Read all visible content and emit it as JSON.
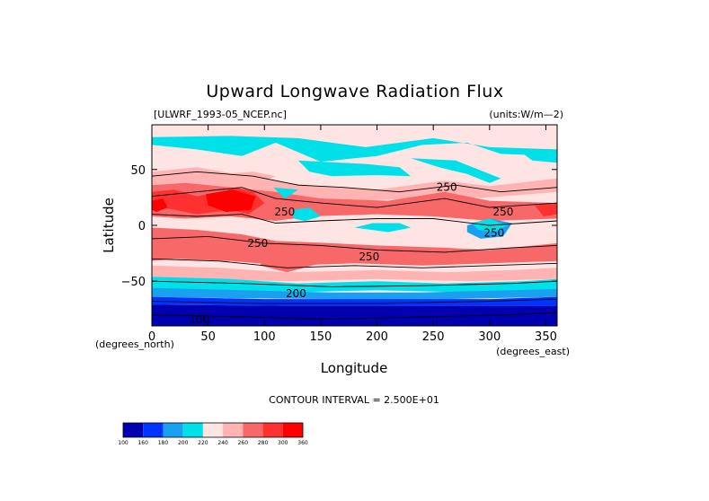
{
  "chart_data": {
    "type": "heatmap",
    "title": "Upward Longwave Radiation Flux",
    "dataset_label": "[ULWRF_1993-05_NCEP.nc]",
    "units_label": "(units:W/m^-2)",
    "units_display": "(units:W/m—2)",
    "xlabel": "Longitude",
    "ylabel": "Latitude",
    "x_unit_note": "(degrees_east)",
    "y_unit_note": "(degrees_north)",
    "xlim": [
      0,
      360
    ],
    "ylim": [
      -90,
      90
    ],
    "x_ticks": [
      0,
      50,
      100,
      150,
      200,
      250,
      300,
      350
    ],
    "y_ticks": [
      50,
      0,
      -50
    ],
    "x_tick_labels": [
      "0",
      "50",
      "100",
      "150",
      "200",
      "250",
      "300",
      "350"
    ],
    "y_tick_labels": [
      "50",
      "0",
      "−50"
    ],
    "contour_interval_text": "CONTOUR INTERVAL = 2.500E+01",
    "contour_labels": [
      {
        "text": "250",
        "lon": 262,
        "lat": 34
      },
      {
        "text": "250",
        "lon": 118,
        "lat": 12
      },
      {
        "text": "250",
        "lon": 312,
        "lat": 12
      },
      {
        "text": "250",
        "lon": 94,
        "lat": -16
      },
      {
        "text": "250",
        "lon": 193,
        "lat": -28
      },
      {
        "text": "250",
        "lon": 304,
        "lat": -7
      },
      {
        "text": "200",
        "lon": 128,
        "lat": -61
      },
      {
        "text": "100",
        "lon": 42,
        "lat": -84
      }
    ],
    "colorbar": {
      "levels": [
        "100",
        "160",
        "180",
        "200",
        "220",
        "240",
        "260",
        "280",
        "300",
        "360"
      ],
      "colors": [
        "#0000b0",
        "#0033ff",
        "#1aa0f0",
        "#00e0e8",
        "#ffe4e4",
        "#ffb3b3",
        "#f86868",
        "#ff3030",
        "#ff0000"
      ]
    },
    "band_colors": {
      "deep_blue": "#0000b0",
      "blue": "#0033ff",
      "sky": "#1aa0f0",
      "cyan": "#00e0e8",
      "pale": "#ffe4e4",
      "pink": "#ffb3b3",
      "salmon": "#f86868",
      "red": "#ff3030",
      "bright_red": "#ff0000"
    }
  }
}
